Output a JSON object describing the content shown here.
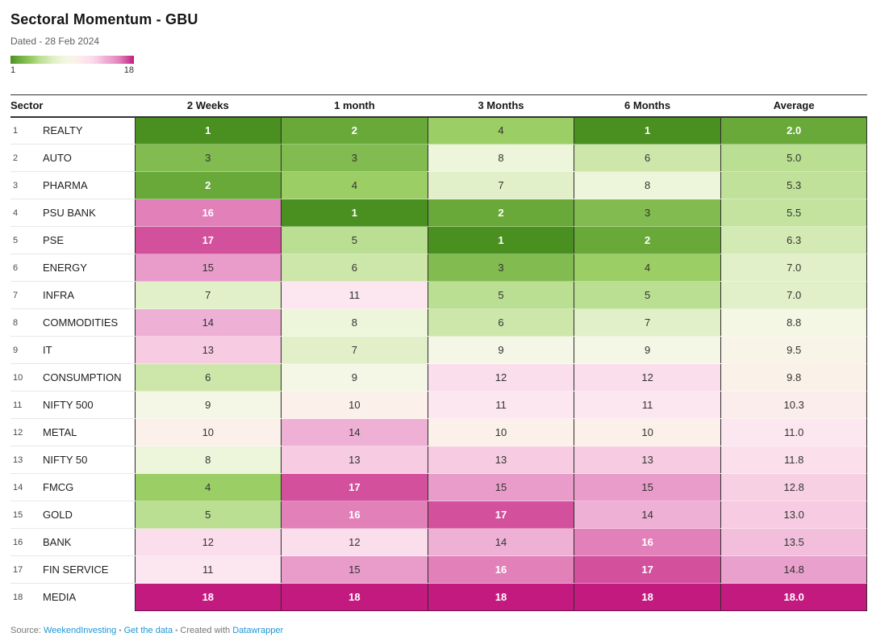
{
  "header": {
    "title": "Sectoral Momentum - GBU",
    "subtitle": "Dated - 28 Feb 2024"
  },
  "legend": {
    "min_label": "1",
    "max_label": "18"
  },
  "chart_data": {
    "type": "heatmap",
    "columns": [
      "Sector",
      "2 Weeks",
      "1 month",
      "3 Months",
      "6 Months",
      "Average"
    ],
    "rows": [
      {
        "index": "1",
        "sector": "REALTY",
        "values": [
          1,
          2,
          4,
          1
        ],
        "average": "2.0"
      },
      {
        "index": "2",
        "sector": "AUTO",
        "values": [
          3,
          3,
          8,
          6
        ],
        "average": "5.0"
      },
      {
        "index": "3",
        "sector": "PHARMA",
        "values": [
          2,
          4,
          7,
          8
        ],
        "average": "5.3"
      },
      {
        "index": "4",
        "sector": "PSU BANK",
        "values": [
          16,
          1,
          2,
          3
        ],
        "average": "5.5"
      },
      {
        "index": "5",
        "sector": "PSE",
        "values": [
          17,
          5,
          1,
          2
        ],
        "average": "6.3"
      },
      {
        "index": "6",
        "sector": "ENERGY",
        "values": [
          15,
          6,
          3,
          4
        ],
        "average": "7.0"
      },
      {
        "index": "7",
        "sector": "INFRA",
        "values": [
          7,
          11,
          5,
          5
        ],
        "average": "7.0"
      },
      {
        "index": "8",
        "sector": "COMMODITIES",
        "values": [
          14,
          8,
          6,
          7
        ],
        "average": "8.8"
      },
      {
        "index": "9",
        "sector": "IT",
        "values": [
          13,
          7,
          9,
          9
        ],
        "average": "9.5"
      },
      {
        "index": "10",
        "sector": "CONSUMPTION",
        "values": [
          6,
          9,
          12,
          12
        ],
        "average": "9.8"
      },
      {
        "index": "11",
        "sector": "NIFTY 500",
        "values": [
          9,
          10,
          11,
          11
        ],
        "average": "10.3"
      },
      {
        "index": "12",
        "sector": "METAL",
        "values": [
          10,
          14,
          10,
          10
        ],
        "average": "11.0"
      },
      {
        "index": "13",
        "sector": "NIFTY 50",
        "values": [
          8,
          13,
          13,
          13
        ],
        "average": "11.8"
      },
      {
        "index": "14",
        "sector": "FMCG",
        "values": [
          4,
          17,
          15,
          15
        ],
        "average": "12.8"
      },
      {
        "index": "15",
        "sector": "GOLD",
        "values": [
          5,
          16,
          17,
          14
        ],
        "average": "13.0"
      },
      {
        "index": "16",
        "sector": "BANK",
        "values": [
          12,
          12,
          14,
          16
        ],
        "average": "13.5"
      },
      {
        "index": "17",
        "sector": "FIN SERVICE",
        "values": [
          11,
          15,
          16,
          17
        ],
        "average": "14.8"
      },
      {
        "index": "18",
        "sector": "MEDIA",
        "values": [
          18,
          18,
          18,
          18
        ],
        "average": "18.0"
      }
    ],
    "scale": {
      "min": 1,
      "max": 18,
      "palette": [
        "#4a9020",
        "#68a93a",
        "#82bb4f",
        "#9bce65",
        "#bade92",
        "#cde7ab",
        "#e1f0c8",
        "#edf5da",
        "#f4f7e6",
        "#fbf0ea",
        "#fce6ef",
        "#fbdeeb",
        "#f7cce2",
        "#efb0d6",
        "#e99cca",
        "#e180b9",
        "#d2509c",
        "#c31a80"
      ],
      "light_text_low_max": 2.5,
      "light_text_high_min": 15.5,
      "light_text_color": "#ffffff",
      "dark_text_color": "#333333"
    }
  },
  "footer": {
    "source_label": "Source: ",
    "source_link": "WeekendInvesting",
    "dot": "•",
    "data_link": "Get the data",
    "created_label": "Created with ",
    "tool_link": "Datawrapper"
  }
}
